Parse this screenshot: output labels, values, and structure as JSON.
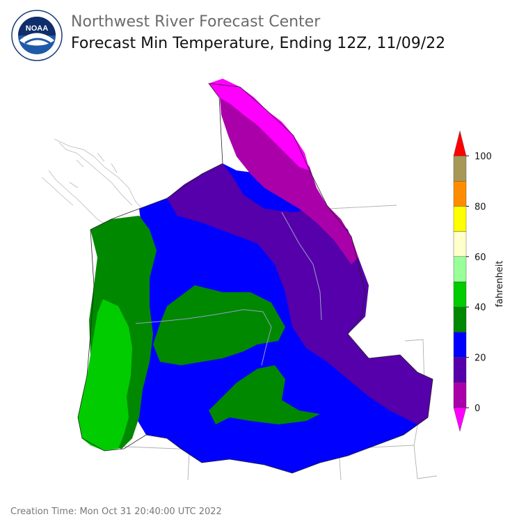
{
  "header": {
    "agency": "Northwest River Forecast Center",
    "title": "Forecast Min Temperature, Ending 12Z, 11/09/22"
  },
  "logo": {
    "text": "NOAA"
  },
  "colorbar": {
    "label": "fahrenheit",
    "ticks": [
      "0",
      "20",
      "40",
      "60",
      "80",
      "100"
    ],
    "colors": [
      "#ff00ff",
      "#aa00aa",
      "#5500aa",
      "#0000ff",
      "#008800",
      "#00cc00",
      "#99ff99",
      "#ffffcc",
      "#ffff00",
      "#ff8c00",
      "#a89858",
      "#ff0000"
    ]
  },
  "footer": {
    "creation": "Creation Time: Mon Oct 31 20:40:00 UTC 2022"
  }
}
